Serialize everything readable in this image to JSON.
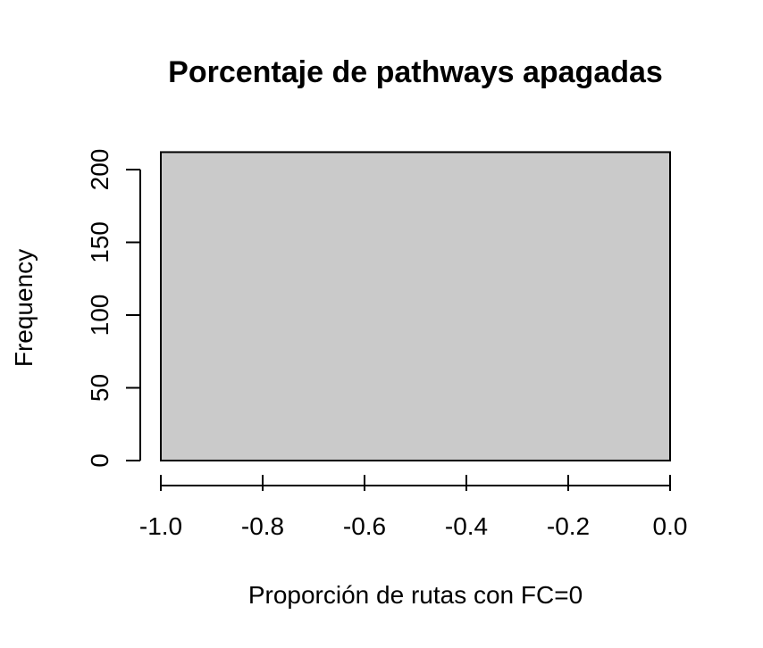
{
  "chart_data": {
    "type": "bar",
    "title": "Porcentaje de pathways apagadas",
    "xlabel": "Proporción de rutas con FC=0",
    "ylabel": "Frequency",
    "xlim": [
      -1.0,
      0.0
    ],
    "ylim": [
      0,
      200
    ],
    "x_ticks": [
      -1.0,
      -0.8,
      -0.6,
      -0.4,
      -0.2,
      0.0
    ],
    "x_tick_labels": [
      "-1.0",
      "-0.8",
      "-0.6",
      "-0.4",
      "-0.2",
      "0.0"
    ],
    "y_ticks": [
      0,
      50,
      100,
      150,
      200
    ],
    "y_tick_labels": [
      "0",
      "50",
      "100",
      "150",
      "200"
    ],
    "bins": [
      {
        "x_start": -1.0,
        "x_end": 0.0,
        "value": 212
      }
    ],
    "fill_color": "#cacaca",
    "grid": false
  }
}
